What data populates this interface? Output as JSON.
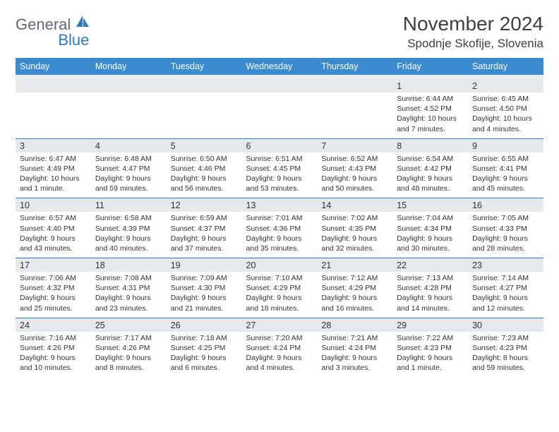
{
  "brand": {
    "part1": "General",
    "part2": "Blue"
  },
  "title": "November 2024",
  "location": "Spodnje Skofije, Slovenia",
  "colors": {
    "header_bg": "#3b8bd0",
    "accent_border": "#2e7cc0",
    "date_bg": "#e5e9eb",
    "logo_gray": "#5f6a72",
    "logo_blue": "#2e7cc0",
    "text": "#333333",
    "background": "#ffffff"
  },
  "dow": [
    "Sunday",
    "Monday",
    "Tuesday",
    "Wednesday",
    "Thursday",
    "Friday",
    "Saturday"
  ],
  "weeks": [
    [
      null,
      null,
      null,
      null,
      null,
      {
        "n": "1",
        "sr": "Sunrise: 6:44 AM",
        "ss": "Sunset: 4:52 PM",
        "dl": "Daylight: 10 hours and 7 minutes."
      },
      {
        "n": "2",
        "sr": "Sunrise: 6:45 AM",
        "ss": "Sunset: 4:50 PM",
        "dl": "Daylight: 10 hours and 4 minutes."
      }
    ],
    [
      {
        "n": "3",
        "sr": "Sunrise: 6:47 AM",
        "ss": "Sunset: 4:49 PM",
        "dl": "Daylight: 10 hours and 1 minute."
      },
      {
        "n": "4",
        "sr": "Sunrise: 6:48 AM",
        "ss": "Sunset: 4:47 PM",
        "dl": "Daylight: 9 hours and 59 minutes."
      },
      {
        "n": "5",
        "sr": "Sunrise: 6:50 AM",
        "ss": "Sunset: 4:46 PM",
        "dl": "Daylight: 9 hours and 56 minutes."
      },
      {
        "n": "6",
        "sr": "Sunrise: 6:51 AM",
        "ss": "Sunset: 4:45 PM",
        "dl": "Daylight: 9 hours and 53 minutes."
      },
      {
        "n": "7",
        "sr": "Sunrise: 6:52 AM",
        "ss": "Sunset: 4:43 PM",
        "dl": "Daylight: 9 hours and 50 minutes."
      },
      {
        "n": "8",
        "sr": "Sunrise: 6:54 AM",
        "ss": "Sunset: 4:42 PM",
        "dl": "Daylight: 9 hours and 48 minutes."
      },
      {
        "n": "9",
        "sr": "Sunrise: 6:55 AM",
        "ss": "Sunset: 4:41 PM",
        "dl": "Daylight: 9 hours and 45 minutes."
      }
    ],
    [
      {
        "n": "10",
        "sr": "Sunrise: 6:57 AM",
        "ss": "Sunset: 4:40 PM",
        "dl": "Daylight: 9 hours and 43 minutes."
      },
      {
        "n": "11",
        "sr": "Sunrise: 6:58 AM",
        "ss": "Sunset: 4:39 PM",
        "dl": "Daylight: 9 hours and 40 minutes."
      },
      {
        "n": "12",
        "sr": "Sunrise: 6:59 AM",
        "ss": "Sunset: 4:37 PM",
        "dl": "Daylight: 9 hours and 37 minutes."
      },
      {
        "n": "13",
        "sr": "Sunrise: 7:01 AM",
        "ss": "Sunset: 4:36 PM",
        "dl": "Daylight: 9 hours and 35 minutes."
      },
      {
        "n": "14",
        "sr": "Sunrise: 7:02 AM",
        "ss": "Sunset: 4:35 PM",
        "dl": "Daylight: 9 hours and 32 minutes."
      },
      {
        "n": "15",
        "sr": "Sunrise: 7:04 AM",
        "ss": "Sunset: 4:34 PM",
        "dl": "Daylight: 9 hours and 30 minutes."
      },
      {
        "n": "16",
        "sr": "Sunrise: 7:05 AM",
        "ss": "Sunset: 4:33 PM",
        "dl": "Daylight: 9 hours and 28 minutes."
      }
    ],
    [
      {
        "n": "17",
        "sr": "Sunrise: 7:06 AM",
        "ss": "Sunset: 4:32 PM",
        "dl": "Daylight: 9 hours and 25 minutes."
      },
      {
        "n": "18",
        "sr": "Sunrise: 7:08 AM",
        "ss": "Sunset: 4:31 PM",
        "dl": "Daylight: 9 hours and 23 minutes."
      },
      {
        "n": "19",
        "sr": "Sunrise: 7:09 AM",
        "ss": "Sunset: 4:30 PM",
        "dl": "Daylight: 9 hours and 21 minutes."
      },
      {
        "n": "20",
        "sr": "Sunrise: 7:10 AM",
        "ss": "Sunset: 4:29 PM",
        "dl": "Daylight: 9 hours and 18 minutes."
      },
      {
        "n": "21",
        "sr": "Sunrise: 7:12 AM",
        "ss": "Sunset: 4:29 PM",
        "dl": "Daylight: 9 hours and 16 minutes."
      },
      {
        "n": "22",
        "sr": "Sunrise: 7:13 AM",
        "ss": "Sunset: 4:28 PM",
        "dl": "Daylight: 9 hours and 14 minutes."
      },
      {
        "n": "23",
        "sr": "Sunrise: 7:14 AM",
        "ss": "Sunset: 4:27 PM",
        "dl": "Daylight: 9 hours and 12 minutes."
      }
    ],
    [
      {
        "n": "24",
        "sr": "Sunrise: 7:16 AM",
        "ss": "Sunset: 4:26 PM",
        "dl": "Daylight: 9 hours and 10 minutes."
      },
      {
        "n": "25",
        "sr": "Sunrise: 7:17 AM",
        "ss": "Sunset: 4:26 PM",
        "dl": "Daylight: 9 hours and 8 minutes."
      },
      {
        "n": "26",
        "sr": "Sunrise: 7:18 AM",
        "ss": "Sunset: 4:25 PM",
        "dl": "Daylight: 9 hours and 6 minutes."
      },
      {
        "n": "27",
        "sr": "Sunrise: 7:20 AM",
        "ss": "Sunset: 4:24 PM",
        "dl": "Daylight: 9 hours and 4 minutes."
      },
      {
        "n": "28",
        "sr": "Sunrise: 7:21 AM",
        "ss": "Sunset: 4:24 PM",
        "dl": "Daylight: 9 hours and 3 minutes."
      },
      {
        "n": "29",
        "sr": "Sunrise: 7:22 AM",
        "ss": "Sunset: 4:23 PM",
        "dl": "Daylight: 9 hours and 1 minute."
      },
      {
        "n": "30",
        "sr": "Sunrise: 7:23 AM",
        "ss": "Sunset: 4:23 PM",
        "dl": "Daylight: 8 hours and 59 minutes."
      }
    ]
  ]
}
